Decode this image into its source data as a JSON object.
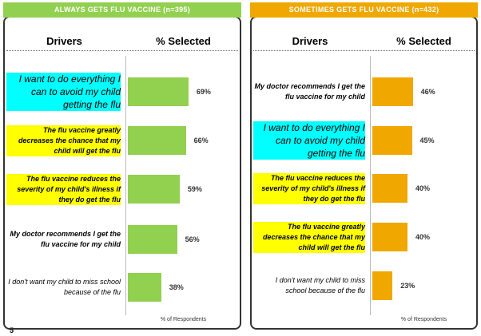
{
  "chart_data": [
    {
      "type": "bar",
      "orientation": "horizontal",
      "title": "ALWAYS GETS FLU VACCINE (n=395)",
      "title_color": "#92d050",
      "column_headers": [
        "Drivers",
        "% Selected"
      ],
      "categories": [
        "I want to do everything I can to avoid my child getting the flu",
        "The flu vaccine greatly decreases the chance that my child will get the flu",
        "The flu vaccine reduces the severity of my child's illness if they do get the flu",
        "My doctor recommends I get the flu vaccine for my child",
        "I don't want my child to miss school because of the flu"
      ],
      "category_highlights": [
        "#00ffff",
        "#ffff00",
        "#ffff00",
        null,
        null
      ],
      "values": [
        69,
        66,
        59,
        56,
        38
      ],
      "value_labels": [
        "69%",
        "66%",
        "59%",
        "56%",
        "38%"
      ],
      "color": "#92d050",
      "xlim": [
        0,
        100
      ],
      "xlabel": "% of Respondents"
    },
    {
      "type": "bar",
      "orientation": "horizontal",
      "title": "SOMETIMES GETS FLU VACCINE (n=432)",
      "title_color": "#f0a800",
      "column_headers": [
        "Drivers",
        "% Selected"
      ],
      "categories": [
        "My doctor recommends I get the flu vaccine for my child",
        "I want to do everything I can to avoid my child getting the flu",
        "The flu vaccine reduces the severity of my child's illness if they do get the flu",
        "The flu vaccine greatly decreases the chance that my child will get the flu",
        "I don't want my child to miss school because of the flu"
      ],
      "category_highlights": [
        null,
        "#00ffff",
        "#ffff00",
        "#ffff00",
        null
      ],
      "values": [
        46,
        45,
        40,
        40,
        23
      ],
      "value_labels": [
        "46%",
        "45%",
        "40%",
        "40%",
        "23%"
      ],
      "color": "#f0a800",
      "xlim": [
        0,
        100
      ],
      "xlabel": "% of Respondents"
    }
  ],
  "page_number": "5"
}
